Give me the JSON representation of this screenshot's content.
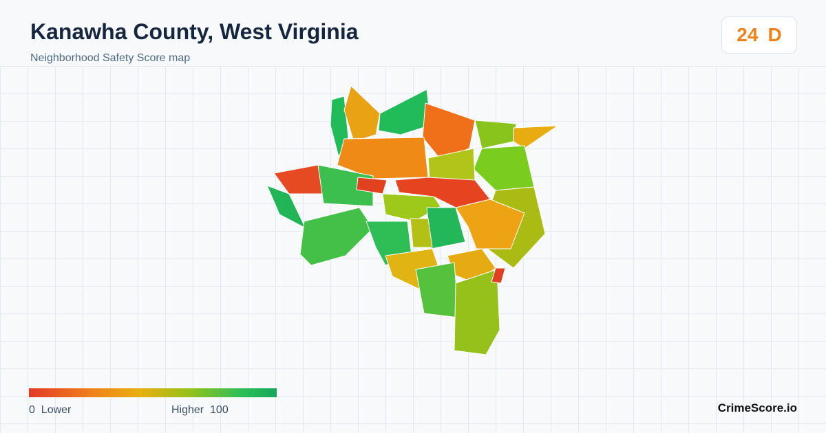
{
  "header": {
    "title": "Kanawha County, West Virginia",
    "subtitle": "Neighborhood Safety Score map"
  },
  "score": {
    "value": 24,
    "grade": "D"
  },
  "legend": {
    "min": 0,
    "min_label": "Lower",
    "max_label": "Higher",
    "max": 100
  },
  "brand": "CrimeScore.io"
}
